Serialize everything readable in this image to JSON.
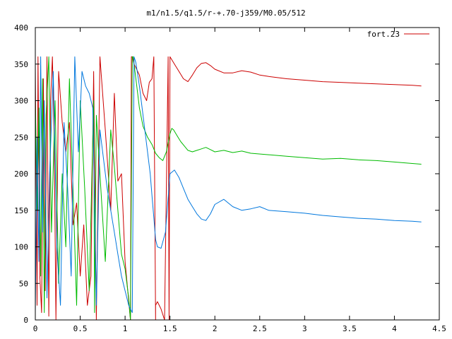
{
  "chart_data": {
    "type": "line",
    "title": "m1/n1.5/q1.5/r-+.70-j359/M0.05/512",
    "xlabel": "",
    "ylabel": "",
    "xlim": [
      0,
      4.5
    ],
    "ylim": [
      0,
      400
    ],
    "grid": false,
    "legend_position": "top-right",
    "x_ticks": [
      "0",
      "0.5",
      "1",
      "1.5",
      "2",
      "2.5",
      "3",
      "3.5",
      "4",
      "4.5"
    ],
    "y_ticks": [
      "0",
      "50",
      "100",
      "150",
      "200",
      "250",
      "300",
      "350",
      "400"
    ],
    "legend": {
      "label": "fort.23",
      "color": "#cc0000"
    },
    "series": [
      {
        "color": "#cc0000",
        "x": [
          0.0,
          0.02,
          0.03,
          0.05,
          0.07,
          0.09,
          0.11,
          0.13,
          0.15,
          0.17,
          0.19,
          0.21,
          0.23,
          0.26,
          0.3,
          0.34,
          0.38,
          0.42,
          0.46,
          0.5,
          0.54,
          0.58,
          0.62,
          0.65,
          0.68,
          0.72,
          0.78,
          0.84,
          0.88,
          0.92,
          0.96,
          1.0,
          1.03,
          1.06,
          1.07,
          1.08,
          1.1,
          1.12,
          1.16,
          1.2,
          1.24,
          1.27,
          1.3,
          1.32,
          1.34,
          1.34,
          1.36,
          1.4,
          1.44,
          1.48,
          1.49,
          1.5,
          1.55,
          1.6,
          1.65,
          1.7,
          1.75,
          1.8,
          1.85,
          1.9,
          1.95,
          2.0,
          2.1,
          2.2,
          2.3,
          2.4,
          2.5,
          2.6,
          2.8,
          3.0,
          3.2,
          3.4,
          3.6,
          3.8,
          4.0,
          4.2,
          4.3
        ],
        "y": [
          350,
          20,
          360,
          60,
          10,
          330,
          40,
          360,
          5,
          300,
          360,
          250,
          0,
          340,
          270,
          230,
          270,
          130,
          160,
          60,
          130,
          20,
          60,
          340,
          0,
          360,
          260,
          150,
          310,
          190,
          200,
          80,
          40,
          0,
          360,
          360,
          350,
          345,
          335,
          310,
          300,
          325,
          330,
          360,
          0,
          20,
          25,
          15,
          0,
          360,
          0,
          360,
          350,
          340,
          330,
          326,
          335,
          345,
          351,
          352,
          348,
          343,
          338,
          338,
          341,
          339,
          335,
          333,
          330,
          328,
          326,
          325,
          324,
          323,
          322,
          321,
          320
        ]
      },
      {
        "color": "#00bb00",
        "x": [
          0.0,
          0.02,
          0.04,
          0.06,
          0.08,
          0.1,
          0.12,
          0.15,
          0.18,
          0.22,
          0.26,
          0.3,
          0.34,
          0.38,
          0.42,
          0.46,
          0.5,
          0.55,
          0.6,
          0.65,
          0.66,
          0.68,
          0.72,
          0.78,
          0.84,
          0.88,
          0.92,
          0.96,
          1.0,
          1.04,
          1.06,
          1.08,
          1.09,
          1.1,
          1.12,
          1.14,
          1.16,
          1.2,
          1.25,
          1.3,
          1.34,
          1.38,
          1.42,
          1.46,
          1.5,
          1.52,
          1.54,
          1.58,
          1.62,
          1.66,
          1.7,
          1.75,
          1.8,
          1.85,
          1.9,
          1.95,
          2.0,
          2.1,
          2.2,
          2.3,
          2.4,
          2.6,
          2.8,
          3.0,
          3.2,
          3.4,
          3.6,
          3.8,
          4.0,
          4.2,
          4.3
        ],
        "y": [
          300,
          150,
          290,
          60,
          330,
          10,
          280,
          360,
          120,
          300,
          50,
          200,
          100,
          330,
          180,
          20,
          300,
          180,
          40,
          300,
          10,
          280,
          200,
          80,
          260,
          210,
          150,
          90,
          70,
          30,
          0,
          360,
          360,
          350,
          330,
          310,
          290,
          265,
          250,
          240,
          228,
          222,
          218,
          230,
          255,
          262,
          260,
          252,
          244,
          238,
          232,
          230,
          232,
          234,
          236,
          233,
          230,
          232,
          229,
          231,
          228,
          226,
          224,
          222,
          220,
          221,
          219,
          218,
          216,
          214,
          213
        ]
      },
      {
        "color": "#0077dd",
        "x": [
          0.0,
          0.02,
          0.04,
          0.06,
          0.08,
          0.1,
          0.13,
          0.16,
          0.2,
          0.24,
          0.28,
          0.32,
          0.36,
          0.4,
          0.44,
          0.48,
          0.52,
          0.56,
          0.6,
          0.64,
          0.68,
          0.72,
          0.76,
          0.8,
          0.84,
          0.88,
          0.92,
          0.96,
          1.0,
          1.04,
          1.08,
          1.1,
          1.12,
          1.16,
          1.2,
          1.24,
          1.28,
          1.3,
          1.32,
          1.34,
          1.36,
          1.4,
          1.45,
          1.5,
          1.55,
          1.6,
          1.65,
          1.7,
          1.75,
          1.8,
          1.85,
          1.9,
          1.95,
          2.0,
          2.1,
          2.2,
          2.3,
          2.4,
          2.5,
          2.6,
          2.8,
          3.0,
          3.2,
          3.4,
          3.6,
          3.8,
          4.0,
          4.2,
          4.3
        ],
        "y": [
          10,
          250,
          80,
          360,
          120,
          300,
          30,
          200,
          340,
          100,
          20,
          270,
          180,
          60,
          360,
          230,
          340,
          320,
          310,
          290,
          20,
          260,
          220,
          180,
          150,
          120,
          90,
          60,
          40,
          20,
          10,
          360,
          352,
          320,
          280,
          240,
          200,
          170,
          140,
          110,
          100,
          98,
          120,
          200,
          205,
          195,
          180,
          165,
          155,
          145,
          138,
          136,
          145,
          158,
          165,
          155,
          150,
          152,
          155,
          150,
          148,
          146,
          143,
          141,
          139,
          138,
          136,
          135,
          134
        ]
      }
    ]
  }
}
